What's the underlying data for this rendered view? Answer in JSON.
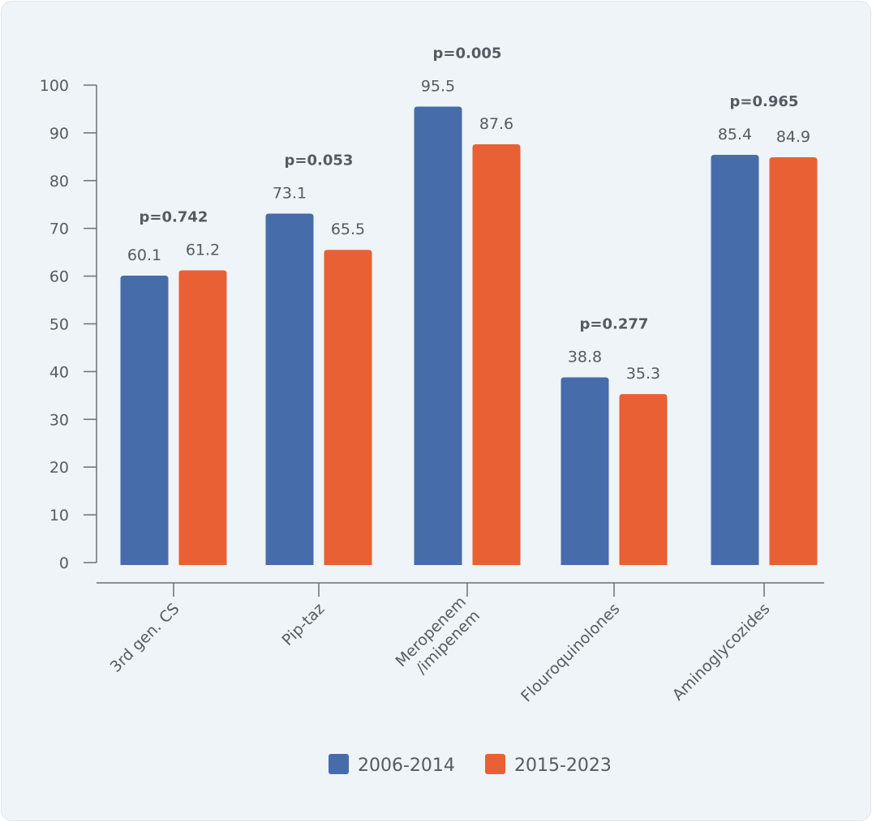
{
  "chart_data": {
    "type": "bar",
    "categories": [
      "3rd gen. CS",
      "Pip-taz",
      "Meropenem\n/imipenem",
      "Flouroquinolones",
      "Aminoglycozides"
    ],
    "series": [
      {
        "name": "2006-2014",
        "color": "#476caa",
        "values": [
          60.1,
          73.1,
          95.5,
          38.8,
          85.4
        ]
      },
      {
        "name": "2015-2023",
        "color": "#e86033",
        "values": [
          61.2,
          65.5,
          87.6,
          35.3,
          84.9
        ]
      }
    ],
    "annotations": [
      "p=0.742",
      "p=0.053",
      "p=0.005",
      "p=0.277",
      "p=0.965"
    ],
    "ylim": [
      0,
      100
    ],
    "yticks": [
      0,
      10,
      20,
      30,
      40,
      50,
      60,
      70,
      80,
      90,
      100
    ],
    "title": "",
    "xlabel": "",
    "ylabel": "",
    "grid": false,
    "legend": "bottom"
  }
}
